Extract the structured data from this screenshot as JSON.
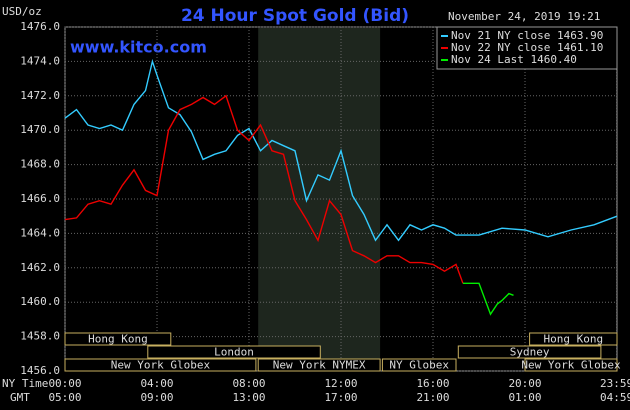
{
  "chart_data": {
    "type": "line",
    "title": "24 Hour Spot Gold (Bid)",
    "y_label": "USD/oz",
    "watermark": "www.kitco.com",
    "timestamp": "November 24, 2019 19:21",
    "x_row_labels": [
      "NY Time",
      "GMT"
    ],
    "xlim": [
      0,
      24
    ],
    "xticks": [
      {
        "value": 0,
        "label": "00:00"
      },
      {
        "value": 4,
        "label": "04:00"
      },
      {
        "value": 8,
        "label": "08:00"
      },
      {
        "value": 12,
        "label": "12:00"
      },
      {
        "value": 16,
        "label": "16:00"
      },
      {
        "value": 20,
        "label": "20:00"
      },
      {
        "value": 23.98,
        "label": "23:59"
      }
    ],
    "gmt_labels": [
      "05:00",
      "09:00",
      "13:00",
      "17:00",
      "21:00",
      "01:00",
      "04:59"
    ],
    "ylim": [
      1456,
      1476
    ],
    "yticks": [
      {
        "value": 1456,
        "label": "1456.0"
      },
      {
        "value": 1458,
        "label": "1458.0"
      },
      {
        "value": 1460,
        "label": "1460.0"
      },
      {
        "value": 1462,
        "label": "1462.0"
      },
      {
        "value": 1464,
        "label": "1464.0"
      },
      {
        "value": 1466,
        "label": "1466.0"
      },
      {
        "value": 1468,
        "label": "1468.0"
      },
      {
        "value": 1470,
        "label": "1470.0"
      },
      {
        "value": 1472,
        "label": "1472.0"
      },
      {
        "value": 1474,
        "label": "1474.0"
      },
      {
        "value": 1476,
        "label": "1476.0"
      }
    ],
    "grid": true,
    "shaded_hours": [
      8.4,
      13.7
    ],
    "session_rows": [
      [
        {
          "name": "Hong Kong",
          "start": 0,
          "end": 4.6
        },
        {
          "name": "Hong Kong",
          "start": 20.2,
          "end": 24
        }
      ],
      [
        {
          "name": "London",
          "start": 3.6,
          "end": 11.1
        },
        {
          "name": "Sydney",
          "start": 17.1,
          "end": 23.3
        }
      ],
      [
        {
          "name": "New York Globex",
          "start": 0,
          "end": 8.3
        },
        {
          "name": "New York NYMEX",
          "start": 8.4,
          "end": 13.7
        },
        {
          "name": "NY Globex",
          "start": 13.8,
          "end": 17.0
        },
        {
          "name": "New York Globex",
          "start": 20.0,
          "end": 24
        }
      ]
    ],
    "series": [
      {
        "name": "Nov 21 NY close 1463.90",
        "color": "#33ccff",
        "x": [
          0,
          0.5,
          1,
          1.5,
          2,
          2.5,
          3,
          3.5,
          3.8,
          4,
          4.5,
          5,
          5.5,
          6,
          6.5,
          7,
          7.5,
          8,
          8.5,
          9,
          9.5,
          10,
          10.5,
          11,
          11.5,
          12,
          12.5,
          13,
          13.5,
          14,
          14.5,
          15,
          15.5,
          16,
          16.5,
          17,
          18,
          19,
          20,
          21,
          22,
          23,
          24
        ],
        "values": [
          1470.7,
          1471.2,
          1470.3,
          1470.1,
          1470.3,
          1470.0,
          1471.5,
          1472.3,
          1474.0,
          1473.2,
          1471.3,
          1470.9,
          1469.9,
          1468.3,
          1468.6,
          1468.8,
          1469.7,
          1470.1,
          1468.8,
          1469.4,
          1469.1,
          1468.8,
          1465.9,
          1467.4,
          1467.1,
          1468.8,
          1466.2,
          1465.1,
          1463.6,
          1464.5,
          1463.6,
          1464.5,
          1464.2,
          1464.5,
          1464.3,
          1463.9,
          1463.9,
          1464.3,
          1464.2,
          1463.8,
          1464.2,
          1464.5,
          1465.0
        ]
      },
      {
        "name": "Nov 22 NY close 1461.10",
        "color": "#ee0000",
        "x": [
          0,
          0.5,
          1,
          1.5,
          2,
          2.5,
          3,
          3.5,
          4,
          4.5,
          5,
          5.5,
          6,
          6.5,
          7,
          7.5,
          8,
          8.5,
          9,
          9.5,
          10,
          10.5,
          11,
          11.5,
          12,
          12.5,
          13,
          13.5,
          14,
          14.5,
          15,
          15.5,
          16,
          16.5,
          17,
          17.3
        ],
        "values": [
          1464.8,
          1464.9,
          1465.7,
          1465.9,
          1465.7,
          1466.8,
          1467.7,
          1466.5,
          1466.2,
          1470.0,
          1471.2,
          1471.5,
          1471.9,
          1471.5,
          1472.0,
          1470.0,
          1469.4,
          1470.3,
          1468.8,
          1468.6,
          1465.9,
          1464.8,
          1463.6,
          1465.9,
          1465.1,
          1463.0,
          1462.7,
          1462.3,
          1462.7,
          1462.7,
          1462.3,
          1462.3,
          1462.2,
          1461.8,
          1462.2,
          1461.1
        ]
      },
      {
        "name": "Nov 24 Last 1460.40",
        "color": "#00ee00",
        "x": [
          17.3,
          18,
          18.5,
          18.8,
          19,
          19.3,
          19.5
        ],
        "values": [
          1461.1,
          1461.1,
          1459.3,
          1459.9,
          1460.1,
          1460.5,
          1460.4
        ]
      }
    ]
  }
}
